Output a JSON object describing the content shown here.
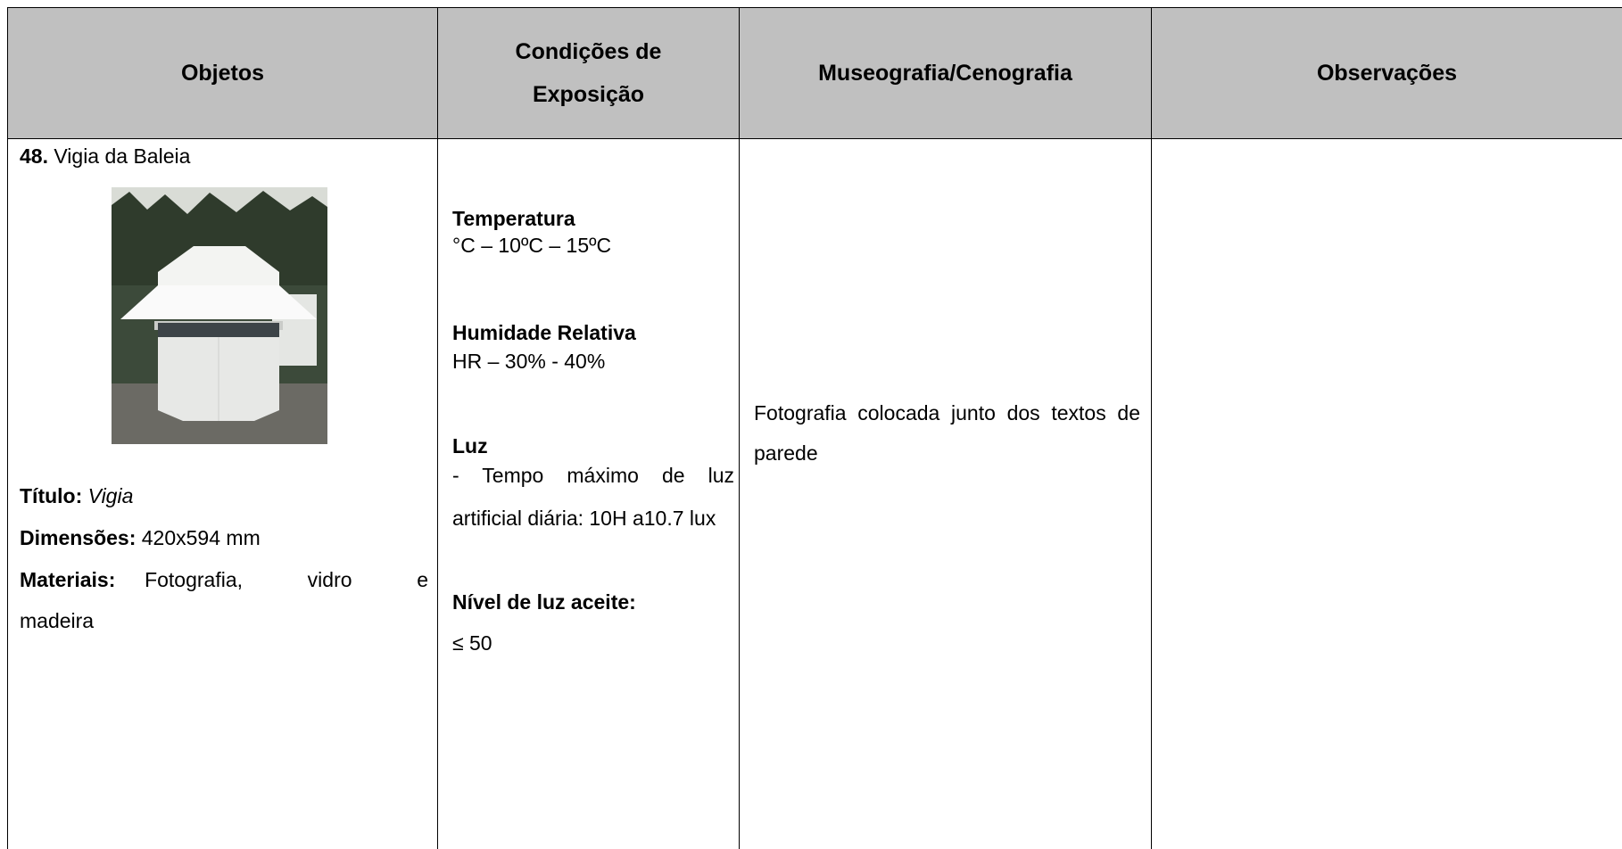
{
  "table": {
    "header": [
      "Objetos",
      "Condições de Exposição",
      "Museografia/Cenografia",
      "Observações"
    ],
    "object": {
      "number": "48.",
      "name": "Vigia da Baleia",
      "fields": [
        {
          "label": "Título:",
          "value": "Vigia"
        },
        {
          "label": "Dimensões:",
          "value": "420x594 mm"
        },
        {
          "label": "Materiais:",
          "value": "Fotografia, vidro e madeira"
        }
      ]
    },
    "conditions": {
      "temperature_label": "Temperatura",
      "temperature": "°C – 10ºC – 15ºC",
      "humidity_label": "Humidade Relativa",
      "humidity": "HR – 30% - 40%",
      "light_label": "Luz",
      "light": "- Tempo máximo de luz artificial diária: 10H a10.7 lux",
      "light_level_label": "Nível de luz aceite:",
      "light_level": "≤ 50"
    },
    "museography": "Fotografia colocada junto dos textos de parede"
  }
}
